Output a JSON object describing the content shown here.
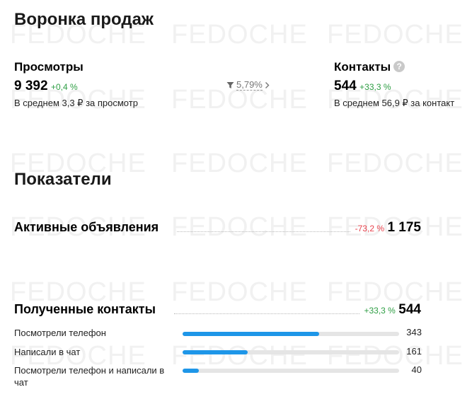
{
  "watermark": "FEDOCHE",
  "funnel": {
    "title": "Воронка продаж",
    "views": {
      "label": "Просмотры",
      "value": "9 392",
      "change": "+0,4 %",
      "average": "В среднем 3,3 ₽ за просмотр"
    },
    "conversion": {
      "rate": "5,79%",
      "filter_icon": "filter-icon",
      "chevron_icon": "chevron-right-icon"
    },
    "contacts": {
      "label": "Контакты",
      "help_icon": "question-circle-icon",
      "value": "544",
      "change": "+33,3 %",
      "average": "В среднем 56,9 ₽ за контакт"
    }
  },
  "indicators": {
    "title": "Показатели",
    "active_ads": {
      "label": "Активные объявления",
      "change": "-73,2 %",
      "value": "1 175"
    },
    "received_contacts": {
      "label": "Полученные контакты",
      "change": "+33,3 %",
      "value": "544",
      "items": [
        {
          "label": "Посмотрели телефон",
          "value": "343",
          "fraction": 0.63
        },
        {
          "label": "Написали в чат",
          "value": "161",
          "fraction": 0.3
        },
        {
          "label": "Посмотрели телефон и написали в чат",
          "value": "40",
          "fraction": 0.075
        }
      ]
    }
  },
  "colors": {
    "positive": "#2e9e44",
    "negative": "#e8424d",
    "bar_fill": "#1e96e8",
    "bar_track": "#e5e5e5"
  }
}
